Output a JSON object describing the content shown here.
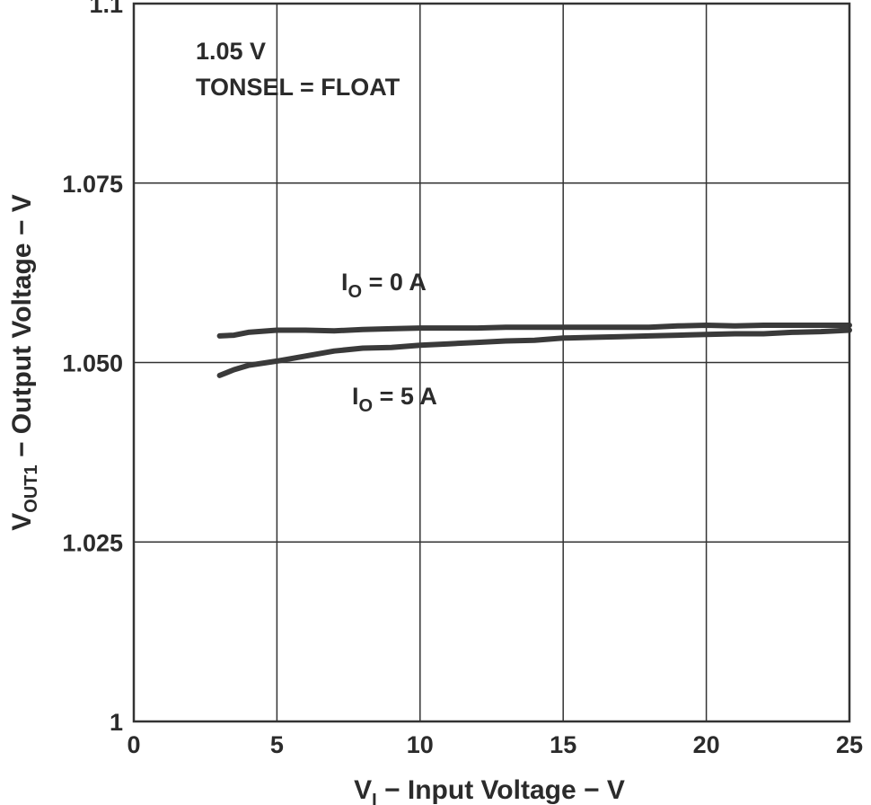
{
  "chart_data": {
    "type": "line",
    "xlabel": {
      "main": "V",
      "sub": "I",
      "rest": " − Input Voltage − V"
    },
    "ylabel": {
      "main": "V",
      "sub": "OUT1",
      "rest": " − Output Voltage − V"
    },
    "xlim": [
      0,
      25
    ],
    "ylim": [
      1.0,
      1.1
    ],
    "x_ticks": [
      0,
      5,
      10,
      15,
      20,
      25
    ],
    "x_tick_labels": [
      "0",
      "5",
      "10",
      "15",
      "20",
      "25"
    ],
    "y_ticks": [
      1.0,
      1.025,
      1.05,
      1.075,
      1.1
    ],
    "y_tick_labels": [
      "1",
      "1.025",
      "1.050",
      "1.075",
      "1.1"
    ],
    "grid": true,
    "annotations": [
      "1.05 V",
      "TONSEL = FLOAT"
    ],
    "series": [
      {
        "label": {
          "main": "I",
          "sub": "O",
          "rest": " = 0 A"
        },
        "x": [
          3.0,
          3.5,
          4.0,
          5.0,
          6.0,
          7.0,
          8.0,
          9.0,
          10.0,
          11.0,
          12.0,
          13.0,
          14.0,
          15.0,
          16.0,
          17.0,
          18.0,
          19.0,
          20.0,
          21.0,
          22.0,
          23.0,
          24.0,
          25.0
        ],
        "y": [
          1.0537,
          1.0538,
          1.0542,
          1.0545,
          1.0545,
          1.0544,
          1.0546,
          1.0547,
          1.0548,
          1.0548,
          1.0548,
          1.0549,
          1.0549,
          1.0549,
          1.0549,
          1.0549,
          1.0549,
          1.0551,
          1.0552,
          1.0551,
          1.0552,
          1.0552,
          1.0552,
          1.0552
        ]
      },
      {
        "label": {
          "main": "I",
          "sub": "O",
          "rest": " = 5 A"
        },
        "x": [
          3.0,
          3.5,
          4.0,
          5.0,
          6.0,
          7.0,
          8.0,
          9.0,
          10.0,
          11.0,
          12.0,
          13.0,
          14.0,
          15.0,
          16.0,
          17.0,
          18.0,
          19.0,
          20.0,
          21.0,
          22.0,
          23.0,
          24.0,
          25.0
        ],
        "y": [
          1.0482,
          1.049,
          1.0496,
          1.0502,
          1.0509,
          1.0516,
          1.052,
          1.0521,
          1.0524,
          1.0526,
          1.0528,
          1.053,
          1.0531,
          1.0534,
          1.0535,
          1.0536,
          1.0537,
          1.0538,
          1.0539,
          1.054,
          1.054,
          1.0542,
          1.0543,
          1.0545
        ]
      }
    ]
  }
}
